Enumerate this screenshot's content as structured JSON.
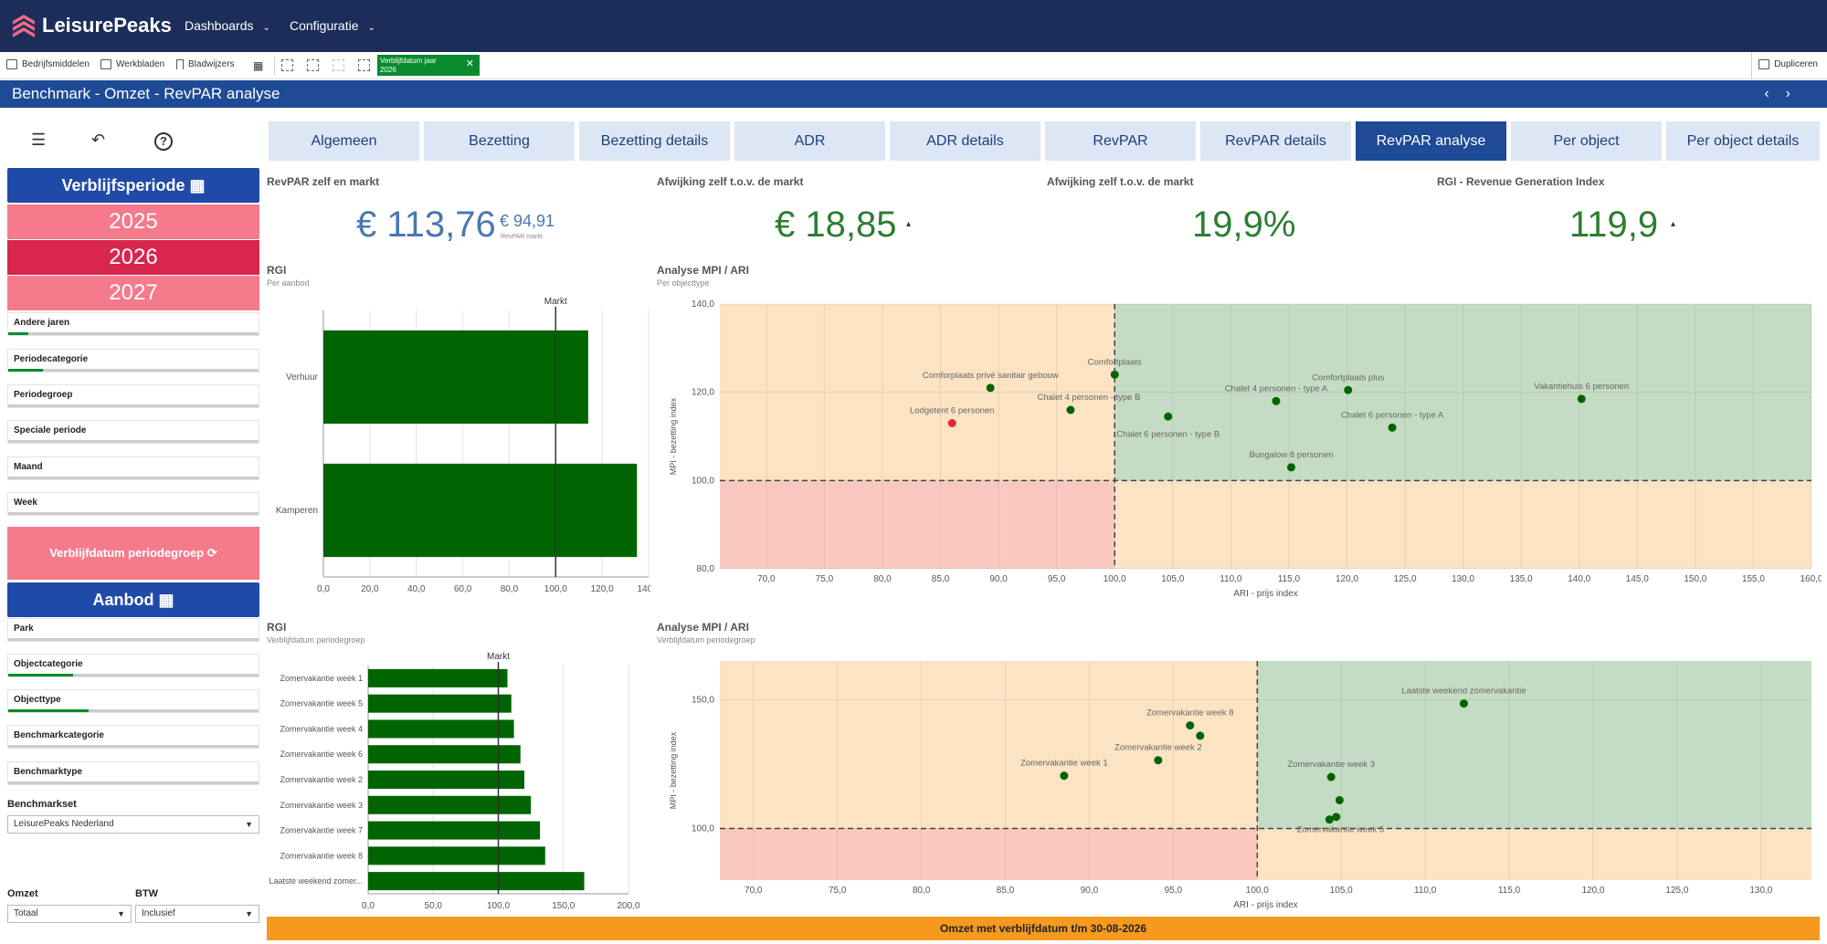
{
  "app": {
    "brand": "LeisurePeaks",
    "nav": [
      "Dashboards",
      "Configuratie"
    ]
  },
  "toolbar": {
    "items": [
      "Bedrijfsmiddelen",
      "Werkbladen",
      "Bladwijzers"
    ],
    "chip_title": "Verblijfdatum jaar",
    "chip_value": "2026",
    "duplicate": "Dupliceren"
  },
  "page_title": "Benchmark - Omzet - RevPAR analyse",
  "tabs": [
    "Algemeen",
    "Bezetting",
    "Bezetting details",
    "ADR",
    "ADR details",
    "RevPAR",
    "RevPAR details",
    "RevPAR analyse",
    "Per object",
    "Per object details"
  ],
  "active_tab": "RevPAR analyse",
  "left": {
    "period_header": "Verblijfsperiode",
    "years": [
      "2025",
      "2026",
      "2027"
    ],
    "filters1": [
      "Andere jaren",
      "Periodecategorie",
      "Periodegroep",
      "Speciale periode",
      "Maand",
      "Week"
    ],
    "period_group_btn": "Verblijfdatum periodegroep",
    "offer_header": "Aanbod",
    "filters2": [
      "Park",
      "Objectcategorie",
      "Objecttype",
      "Benchmarkcategorie",
      "Benchmarktype"
    ],
    "benchmarkset_label": "Benchmarkset",
    "benchmarkset_value": "LeisurePeaks Nederland",
    "omzet_label": "Omzet",
    "omzet_value": "Totaal",
    "btw_label": "BTW",
    "btw_value": "Inclusief"
  },
  "kpis": {
    "k1_title": "RevPAR zelf en markt",
    "k1_value": "€ 113,76",
    "k1_market": "€ 94,91",
    "k1_market_label": "RevPAR markt",
    "k2_title": "Afwijking zelf t.o.v. de markt",
    "k2_value": "€ 18,85",
    "k3_title": "Afwijking zelf t.o.v. de markt",
    "k3_value": "19,9%",
    "k4_title": "RGI - Revenue Generation Index",
    "k4_value": "119,9"
  },
  "charts_text": {
    "c1_title": "RGI",
    "c1_sub": "Per aanbod",
    "c2_title": "Analyse MPI / ARI",
    "c2_sub": "Per objecttype",
    "c3_title": "RGI",
    "c3_sub": "Verblijfdatum periodegroep",
    "c4_title": "Analyse MPI / ARI",
    "c4_sub": "Verblijfdatum periodegroep"
  },
  "chart_data": [
    {
      "type": "bar",
      "orientation": "horizontal",
      "title": "RGI",
      "subtitle": "Per aanbod",
      "categories": [
        "Verhuur",
        "Kamperen"
      ],
      "values": [
        114,
        135
      ],
      "reference_line": {
        "label": "Markt",
        "value": 100
      },
      "xticks": [
        "0,0",
        "20,0",
        "40,0",
        "60,0",
        "80,0",
        "100,0",
        "120,0",
        "140,0"
      ],
      "xlim": [
        0,
        140
      ],
      "color": "#006400"
    },
    {
      "type": "scatter",
      "title": "Analyse MPI / ARI",
      "subtitle": "Per objecttype",
      "xlabel": "ARI - prijs index",
      "ylabel": "MPI - bezetting index",
      "xlim": [
        66,
        160
      ],
      "ylim": [
        80,
        140
      ],
      "xticks": [
        "70,0",
        "75,0",
        "80,0",
        "85,0",
        "90,0",
        "95,0",
        "100,0",
        "105,0",
        "110,0",
        "115,0",
        "120,0",
        "125,0",
        "130,0",
        "135,0",
        "140,0",
        "145,0",
        "150,0",
        "155,0",
        "160,0"
      ],
      "yticks": [
        "80,0",
        "100,0",
        "120,0",
        "140,0"
      ],
      "points": [
        {
          "label": "Comforplaats privé sanitair gebouw",
          "x": 89.3,
          "y": 121,
          "color": "#006400"
        },
        {
          "label": "Lodgetent 6 personen",
          "x": 86,
          "y": 113,
          "color": "#e32636"
        },
        {
          "label": "Chalet 4 personen - type B",
          "x": 96.2,
          "y": 116,
          "color": "#006400"
        },
        {
          "label": "Comfortplaats",
          "x": 100,
          "y": 124,
          "color": "#006400"
        },
        {
          "label": "Chalet 6 personen - type B",
          "x": 104.6,
          "y": 114.5,
          "color": "#006400"
        },
        {
          "label": "Chalet 4 personen - type A",
          "x": 113.9,
          "y": 118,
          "color": "#006400"
        },
        {
          "label": "Comfortplaats plus",
          "x": 120.1,
          "y": 120.5,
          "color": "#006400"
        },
        {
          "label": "Chalet 6 personen - type A",
          "x": 123.9,
          "y": 112,
          "color": "#006400"
        },
        {
          "label": "Bungalow 8 personen",
          "x": 115.2,
          "y": 103,
          "color": "#006400"
        },
        {
          "label": "Vakantiehuis 6 personen",
          "x": 140.2,
          "y": 118.5,
          "color": "#006400"
        }
      ]
    },
    {
      "type": "bar",
      "orientation": "horizontal",
      "title": "RGI",
      "subtitle": "Verblijfdatum periodegroep",
      "categories": [
        "Zomervakantie week 1",
        "Zomervakantie week 5",
        "Zomervakantie week 4",
        "Zomervakantie week 6",
        "Zomervakantie week 2",
        "Zomervakantie week 3",
        "Zomervakantie week 7",
        "Zomervakantie week 8",
        "Laatste weekend zomer..."
      ],
      "values": [
        107,
        110,
        112,
        117,
        120,
        125,
        132,
        136,
        166
      ],
      "reference_line": {
        "label": "Markt",
        "value": 100
      },
      "xticks": [
        "0,0",
        "50,0",
        "100,0",
        "150,0",
        "200,0"
      ],
      "xlim": [
        0,
        200
      ],
      "color": "#006400"
    },
    {
      "type": "scatter",
      "title": "Analyse MPI / ARI",
      "subtitle": "Verblijfdatum periodegroep",
      "xlabel": "ARI - prijs index",
      "ylabel": "MPI - bezetting index",
      "xlim": [
        68,
        133
      ],
      "ylim": [
        80,
        165
      ],
      "xticks": [
        "70,0",
        "75,0",
        "80,0",
        "85,0",
        "90,0",
        "95,0",
        "100,0",
        "105,0",
        "110,0",
        "115,0",
        "120,0",
        "125,0",
        "130,0"
      ],
      "yticks": [
        "100,0",
        "150,0"
      ],
      "points": [
        {
          "label": "Zomervakantie week 1",
          "x": 88.5,
          "y": 120.5
        },
        {
          "label": "Zomervakantie week 2",
          "x": 94.1,
          "y": 126.5
        },
        {
          "label": "Zomervakantie week 8",
          "x": 96,
          "y": 140
        },
        {
          "label": "",
          "x": 96.6,
          "y": 136
        },
        {
          "label": "Zomervakantie week 3",
          "x": 104.4,
          "y": 120
        },
        {
          "label": "",
          "x": 104.9,
          "y": 111
        },
        {
          "label": "",
          "x": 104.7,
          "y": 104.5
        },
        {
          "label": "Zomervakantie week 5",
          "x": 104.3,
          "y": 103.5
        },
        {
          "label": "Laatste weekend zomervakantie",
          "x": 112.3,
          "y": 148.5
        }
      ]
    }
  ],
  "footer": "Omzet met verblijfdatum t/m 30-08-2026",
  "colors": {
    "navy": "#1d2d5a",
    "blue": "#1e4a96",
    "green": "#006400",
    "orange_zone": "#fbe3c4",
    "green_zone": "#c5dcc4",
    "red_zone": "#f9c9c0"
  }
}
